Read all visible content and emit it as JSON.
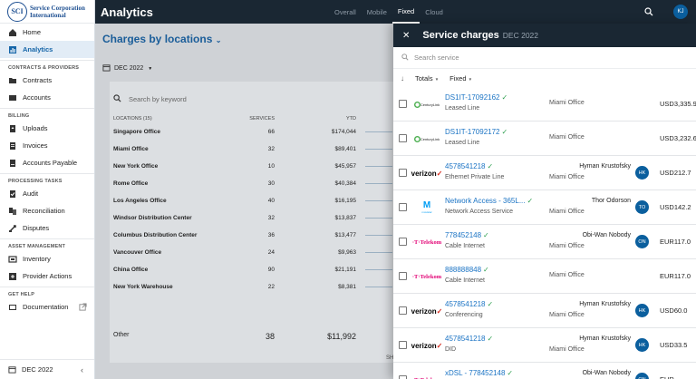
{
  "logo": {
    "name_line1": "Service Corporation",
    "name_line2": "International",
    "seal": "SCI"
  },
  "sidebar": {
    "top_items": [
      {
        "label": "Home",
        "icon": "home-icon"
      },
      {
        "label": "Analytics",
        "icon": "analytics-icon",
        "active": true
      }
    ],
    "sections": [
      {
        "title": "CONTRACTS & PROVIDERS",
        "items": [
          {
            "label": "Contracts",
            "icon": "folder-icon"
          },
          {
            "label": "Accounts",
            "icon": "accounts-icon"
          }
        ]
      },
      {
        "title": "BILLING",
        "items": [
          {
            "label": "Uploads",
            "icon": "upload-icon"
          },
          {
            "label": "Invoices",
            "icon": "invoice-icon"
          },
          {
            "label": "Accounts Payable",
            "icon": "payable-icon"
          }
        ]
      },
      {
        "title": "PROCESSING TASKS",
        "items": [
          {
            "label": "Audit",
            "icon": "audit-icon"
          },
          {
            "label": "Reconciliation",
            "icon": "reconciliation-icon"
          },
          {
            "label": "Disputes",
            "icon": "disputes-icon"
          }
        ]
      },
      {
        "title": "ASSET MANAGEMENT",
        "items": [
          {
            "label": "Inventory",
            "icon": "inventory-icon"
          },
          {
            "label": "Provider Actions",
            "icon": "provider-actions-icon"
          }
        ]
      },
      {
        "title": "GET HELP",
        "items": [
          {
            "label": "Documentation",
            "icon": "documentation-icon"
          }
        ]
      }
    ],
    "period": "DEC 2022"
  },
  "topbar": {
    "title": "Analytics",
    "tabs": [
      "Overall",
      "Mobile",
      "Fixed",
      "Cloud"
    ],
    "active_tab": "Fixed",
    "user_initials": "KJ"
  },
  "main": {
    "title": "Charges by locations",
    "date_filter": "DEC 2022",
    "search_placeholder": "Search by keyword",
    "columns": [
      "LOCATIONS (15)",
      "SERVICES",
      "YTD"
    ],
    "rows": [
      {
        "location": "Singapore Office",
        "services": "66",
        "ytd": "$174,044"
      },
      {
        "location": "Miami Office",
        "services": "32",
        "ytd": "$89,401"
      },
      {
        "location": "New York Office",
        "services": "10",
        "ytd": "$45,957"
      },
      {
        "location": "Rome Office",
        "services": "30",
        "ytd": "$40,384"
      },
      {
        "location": "Los Angeles Office",
        "services": "40",
        "ytd": "$16,195"
      },
      {
        "location": "Windsor Distribution Center",
        "services": "32",
        "ytd": "$13,837"
      },
      {
        "location": "Columbus Distribution Center",
        "services": "36",
        "ytd": "$13,477"
      },
      {
        "location": "Vancouver Office",
        "services": "24",
        "ytd": "$9,963"
      },
      {
        "location": "China Office",
        "services": "90",
        "ytd": "$21,191"
      },
      {
        "location": "New York Warehouse",
        "services": "22",
        "ytd": "$8,381"
      }
    ],
    "other": {
      "label": "Other",
      "services": "38",
      "ytd": "$11,992"
    },
    "footer_partial": "SH"
  },
  "drawer": {
    "title": "Service charges",
    "period": "DEC 2022",
    "search_placeholder": "Search service",
    "filters": [
      "Totals",
      "Fixed"
    ],
    "items": [
      {
        "service": "DS1IT-17092162",
        "type": "Leased Line",
        "contact": "",
        "initials": "",
        "location": "Miami Office",
        "amount": "USD3,335.9",
        "provider": "CenturyLink"
      },
      {
        "service": "DS1IT-17092172",
        "type": "Leased Line",
        "contact": "",
        "initials": "",
        "location": "Miami Office",
        "amount": "USD3,232.6",
        "provider": "CenturyLink"
      },
      {
        "service": "4578541218",
        "type": "Ethernet Private Line",
        "contact": "Hyman Krustofsky",
        "initials": "HK",
        "location": "Miami Office",
        "amount": "USD212.7",
        "provider": "verizon"
      },
      {
        "service": "Network Access - 365L...",
        "type": "Network Access Service",
        "contact": "Thor Odorson",
        "initials": "TO",
        "location": "Miami Office",
        "amount": "USD142.2",
        "provider": "Movistar"
      },
      {
        "service": "778452148",
        "type": "Cable Internet",
        "contact": "Obi-Wan Nobody",
        "initials": "ON",
        "location": "Miami Office",
        "amount": "EUR117.0",
        "provider": "Telekom"
      },
      {
        "service": "888888848",
        "type": "Cable Internet",
        "contact": "",
        "initials": "",
        "location": "Miami Office",
        "amount": "EUR117.0",
        "provider": "Telekom"
      },
      {
        "service": "4578541218",
        "type": "Conferencing",
        "contact": "Hyman Krustofsky",
        "initials": "HK",
        "location": "Miami Office",
        "amount": "USD60.0",
        "provider": "verizon"
      },
      {
        "service": "4578541218",
        "type": "DID",
        "contact": "Hyman Krustofsky",
        "initials": "HK",
        "location": "Miami Office",
        "amount": "USD33.5",
        "provider": "verizon"
      },
      {
        "service": "xDSL - 778452148",
        "type": "",
        "contact": "Obi-Wan Nobody",
        "initials": "ON",
        "location": "",
        "amount": "EUR",
        "provider": "Telekom"
      }
    ]
  }
}
